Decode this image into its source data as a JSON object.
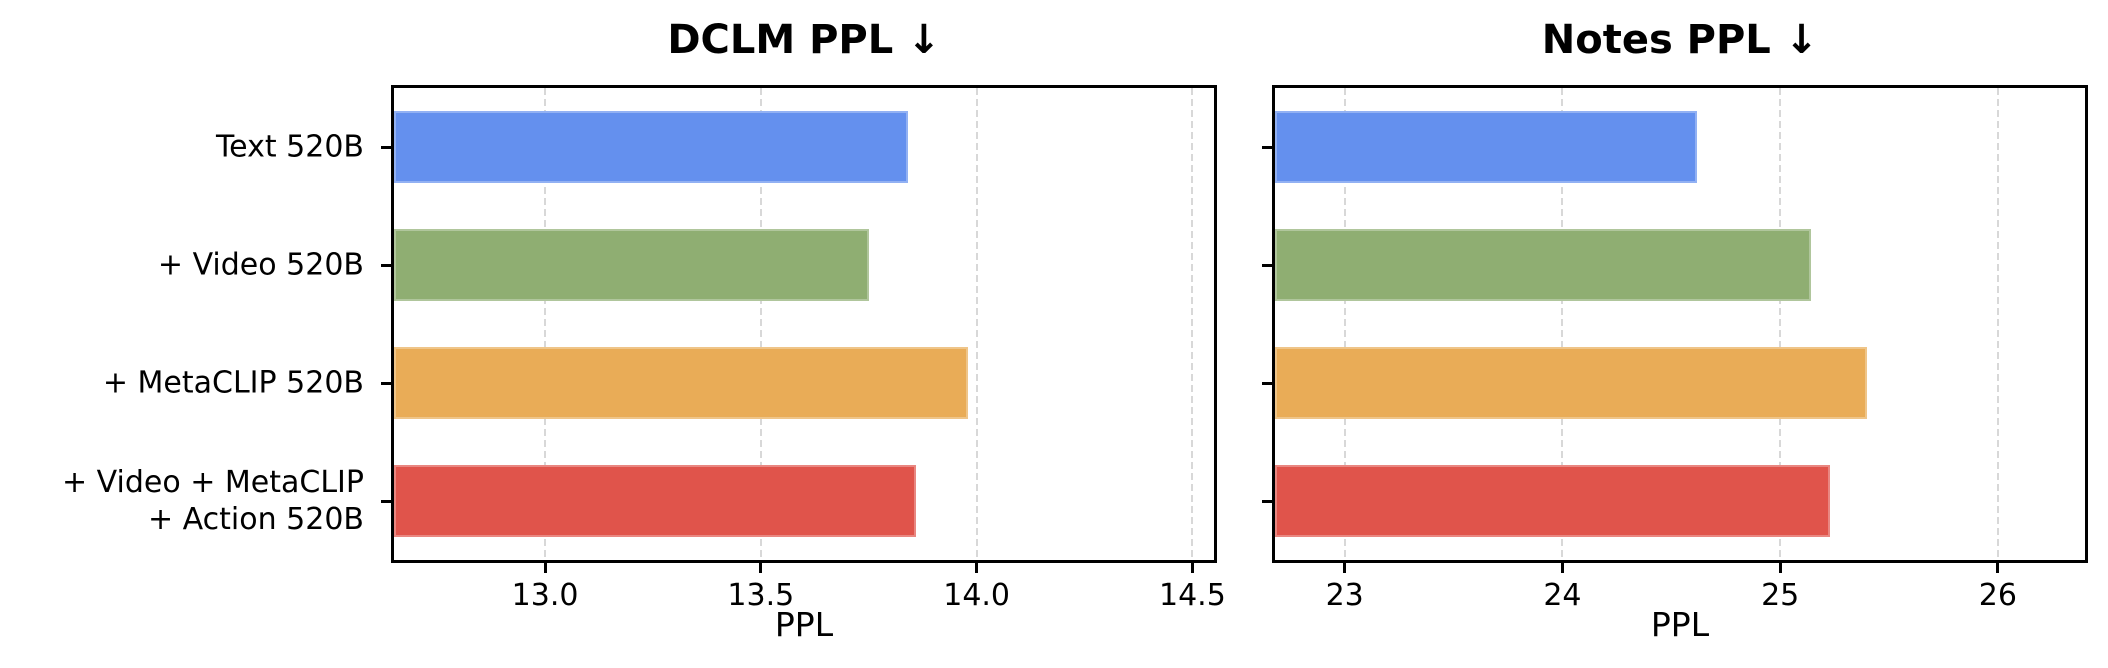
{
  "figure_title": "Perplexity comparison bar charts",
  "palette": {
    "bar_colors": [
      "#6490ee",
      "#8fae72",
      "#e9ac57",
      "#e0544b"
    ],
    "grid_color": "#d8d8d8",
    "spine_color": "#000000",
    "text_color": "#000000",
    "background": "#ffffff"
  },
  "chart_data": [
    {
      "type": "bar",
      "orientation": "horizontal",
      "title": "DCLM PPL ↓",
      "xlabel": "PPL",
      "categories": [
        "Text 520B",
        "+ Video 520B",
        "+ MetaCLIP 520B",
        "+ Video + MetaCLIP\n+ Action 520B"
      ],
      "values": [
        13.84,
        13.75,
        13.98,
        13.86
      ],
      "xlim": [
        12.65,
        14.55
      ],
      "xticks": [
        13.0,
        13.5,
        14.0,
        14.5
      ],
      "xtick_labels": [
        "13.0",
        "13.5",
        "14.0",
        "14.5"
      ],
      "grid": "vertical-dashed",
      "show_category_labels": true,
      "bar_colors_order": [
        "blue",
        "green",
        "orange",
        "red"
      ]
    },
    {
      "type": "bar",
      "orientation": "horizontal",
      "title": "Notes PPL ↓",
      "xlabel": "PPL",
      "categories": [
        "Text 520B",
        "+ Video 520B",
        "+ MetaCLIP 520B",
        "+ Video + MetaCLIP\n+ Action 520B"
      ],
      "values": [
        24.62,
        25.14,
        25.4,
        25.23
      ],
      "xlim": [
        22.68,
        26.4
      ],
      "xticks": [
        23,
        24,
        25,
        26
      ],
      "xtick_labels": [
        "23",
        "24",
        "25",
        "26"
      ],
      "grid": "vertical-dashed",
      "show_category_labels": false,
      "bar_colors_order": [
        "blue",
        "green",
        "orange",
        "red"
      ]
    }
  ]
}
